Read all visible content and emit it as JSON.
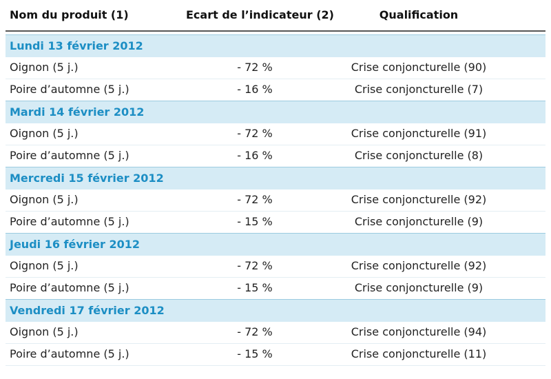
{
  "table": {
    "columns": [
      "Nom du produit (1)",
      "Ecart de l’indicateur (2)",
      "Qualification"
    ],
    "groups": [
      {
        "date": "Lundi 13 février 2012",
        "rows": [
          [
            "Oignon (5 j.)",
            "- 72 %",
            "Crise conjoncturelle (90)"
          ],
          [
            "Poire d’automne (5 j.)",
            "- 16 %",
            "Crise conjoncturelle (7)"
          ]
        ]
      },
      {
        "date": "Mardi 14 février 2012",
        "rows": [
          [
            "Oignon (5 j.)",
            "- 72 %",
            "Crise conjoncturelle (91)"
          ],
          [
            "Poire d’automne (5 j.)",
            "- 16 %",
            "Crise conjoncturelle (8)"
          ]
        ]
      },
      {
        "date": "Mercredi 15 février 2012",
        "rows": [
          [
            "Oignon (5 j.)",
            "- 72 %",
            "Crise conjoncturelle (92)"
          ],
          [
            "Poire d’automne (5 j.)",
            "- 15 %",
            "Crise conjoncturelle (9)"
          ]
        ]
      },
      {
        "date": "Jeudi 16 février 2012",
        "rows": [
          [
            "Oignon (5 j.)",
            "- 72 %",
            "Crise conjoncturelle (92)"
          ],
          [
            "Poire d’automne (5 j.)",
            "- 15 %",
            "Crise conjoncturelle (9)"
          ]
        ]
      },
      {
        "date": "Vendredi 17 février 2012",
        "rows": [
          [
            "Oignon (5 j.)",
            "- 72 %",
            "Crise conjoncturelle (94)"
          ],
          [
            "Poire d’automne (5 j.)",
            "- 15 %",
            "Crise conjoncturelle (11)"
          ]
        ]
      }
    ]
  }
}
